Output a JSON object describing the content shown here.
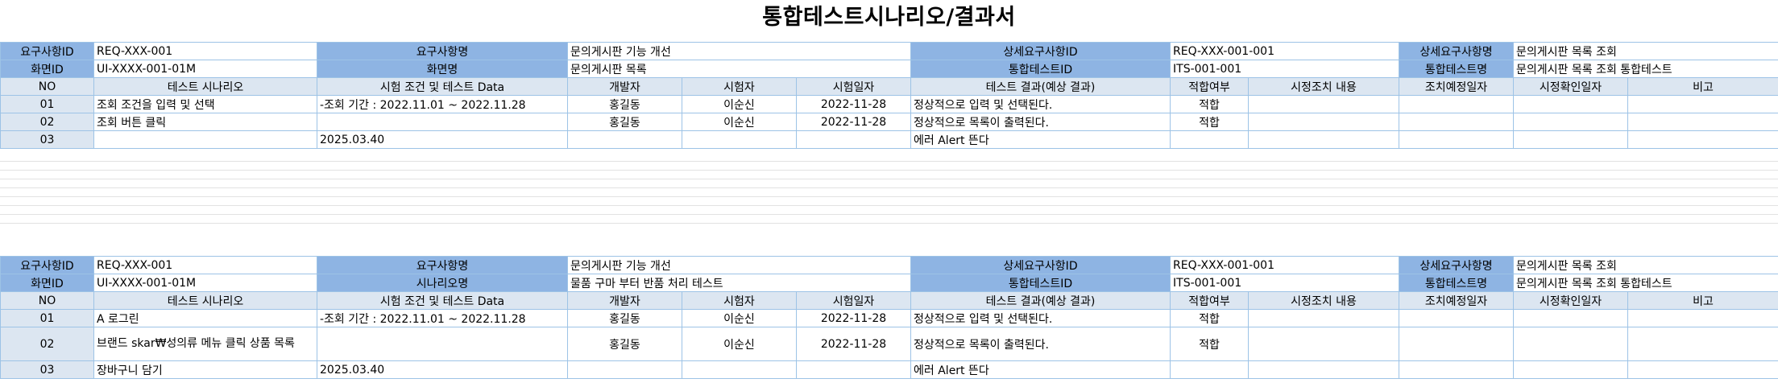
{
  "title": "통합테스트시나리오/결과서",
  "sections": [
    {
      "info_rows": [
        [
          "요구사항ID",
          "REQ-XXX-001",
          "요구사항명",
          "문의게시판 기능 개선",
          "상세요구사항ID",
          "REQ-XXX-001-001",
          "상세요구사항명",
          "문의게시판 목록 조회"
        ],
        [
          "화면ID",
          "UI-XXXX-001-01M",
          "화면명",
          "문의게시판 목록",
          "통합테스트ID",
          "ITS-001-001",
          "통합테스트명",
          "문의게시판 목록 조회 통합테스트"
        ]
      ],
      "columns": [
        "NO",
        "테스트 시나리오",
        "시험 조건 및 테스트 Data",
        "개발자",
        "시험자",
        "시험일자",
        "테스트 결과(예상 결과)",
        "적합여부",
        "시정조치 내용",
        "조치예정일자",
        "시정확인일자",
        "비고"
      ],
      "rows": [
        [
          "01",
          "조회 조건을 입력 및 선택",
          "-조회 기간 : 2022.11.01 ~ 2022.11.28",
          "홍길동",
          "이순신",
          "2022-11-28",
          "정상적으로 입력 및 선택된다.",
          "적합",
          "",
          "",
          "",
          ""
        ],
        [
          "02",
          "조회 버튼 클릭",
          "",
          "홍길동",
          "이순신",
          "2022-11-28",
          "정상적으로 목록이 출력된다.",
          "적합",
          "",
          "",
          "",
          ""
        ],
        [
          "03",
          "",
          "2025.03.40",
          "",
          "",
          "",
          "에러 Alert 뜬다",
          "",
          "",
          "",
          "",
          ""
        ]
      ]
    },
    {
      "info_rows": [
        [
          "요구사항ID",
          "REQ-XXX-001",
          "요구사항명",
          "문의게시판 기능 개선",
          "상세요구사항ID",
          "REQ-XXX-001-001",
          "상세요구사항명",
          "문의게시판 목록 조회"
        ],
        [
          "화면ID",
          "UI-XXXX-001-01M",
          "시나리오명",
          "물품 구마 부터 반품 처리 테스트",
          "통합테스트ID",
          "ITS-001-001",
          "통합테스트명",
          "문의게시판 목록 조회 통합테스트"
        ]
      ],
      "columns": [
        "NO",
        "테스트 시나리오",
        "시험 조건 및 테스트 Data",
        "개발자",
        "시험자",
        "시험일자",
        "테스트 결과(예상 결과)",
        "적합여부",
        "시정조치 내용",
        "조치예정일자",
        "시정확인일자",
        "비고"
      ],
      "rows": [
        [
          "01",
          "A 로그린",
          "-조회 기간 : 2022.11.01 ~ 2022.11.28",
          "홍길동",
          "이순신",
          "2022-11-28",
          "정상적으로 입력 및 선택된다.",
          "적합",
          "",
          "",
          "",
          ""
        ],
        [
          "02",
          "브랜드 skar₩성의류 메뉴 클릭 상품 목록",
          "",
          "홍길동",
          "이순신",
          "2022-11-28",
          "정상적으로 목록이 출력된다.",
          "적합",
          "",
          "",
          "",
          ""
        ],
        [
          "03",
          "장바구니 담기",
          "2025.03.40",
          "",
          "",
          "",
          "에러 Alert 뜬다",
          "",
          "",
          "",
          "",
          ""
        ]
      ]
    }
  ]
}
